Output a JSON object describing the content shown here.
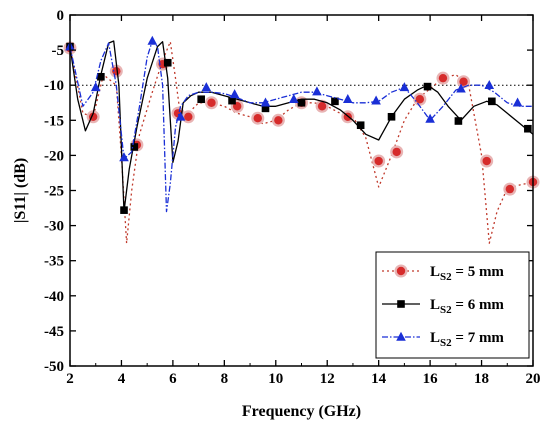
{
  "chart_data": {
    "type": "line",
    "xlabel": "Frequency (GHz)",
    "ylabel": "|S11| (dB)",
    "xlim": [
      2,
      20
    ],
    "ylim": [
      -50,
      0
    ],
    "xticks": [
      2,
      4,
      6,
      8,
      10,
      12,
      14,
      16,
      18,
      20
    ],
    "yticks": [
      0,
      -5,
      -10,
      -15,
      -20,
      -25,
      -30,
      -35,
      -40,
      -45,
      -50
    ],
    "reference_line": {
      "y": -10,
      "style": "dotted"
    },
    "legend_position": "bottom-right",
    "series": [
      {
        "name": "LS2 = 5 mm",
        "label_main": "L",
        "label_sub": "S2",
        "label_tail": " = 5 mm",
        "color": "#c0392b",
        "marker_fill": "#d62b2b",
        "marker_halo": "#e8b4b4",
        "marker": "circle",
        "dash": "2,3",
        "x": [
          2.0,
          2.5,
          2.9,
          3.3,
          3.8,
          4.0,
          4.2,
          4.4,
          4.7,
          5.2,
          5.6,
          5.9,
          6.1,
          6.3,
          6.6,
          7.0,
          7.5,
          8.0,
          8.5,
          9.0,
          9.5,
          10.0,
          10.5,
          11.0,
          11.5,
          12.0,
          12.5,
          13.0,
          13.5,
          14.0,
          14.5,
          15.0,
          15.5,
          16.0,
          16.5,
          17.0,
          17.5,
          18.0,
          18.3,
          18.6,
          19.0,
          19.5,
          20.0
        ],
        "y": [
          -4.5,
          -14.0,
          -14.5,
          -8.5,
          -10.0,
          -20.0,
          -32.5,
          -25.0,
          -17.0,
          -11.0,
          -6.5,
          -3.8,
          -9.0,
          -14.5,
          -14.0,
          -12.5,
          -12.5,
          -13.0,
          -14.0,
          -14.5,
          -15.5,
          -15.0,
          -13.5,
          -12.5,
          -12.5,
          -13.0,
          -14.0,
          -14.5,
          -17.5,
          -24.5,
          -20.0,
          -15.0,
          -12.0,
          -10.5,
          -9.0,
          -8.5,
          -10.0,
          -20.0,
          -32.5,
          -28.0,
          -24.7,
          -24.2,
          -23.8
        ],
        "marker_x": [
          2.0,
          2.9,
          3.8,
          4.6,
          5.6,
          6.2,
          6.6,
          7.5,
          8.5,
          9.3,
          10.1,
          11.0,
          11.8,
          12.8,
          14.0,
          14.7,
          15.6,
          16.5,
          17.3,
          18.2,
          19.1,
          20.0
        ],
        "marker_y": [
          -4.7,
          -14.5,
          -8.0,
          -18.5,
          -7.0,
          -14.0,
          -14.5,
          -12.5,
          -13.0,
          -14.7,
          -15.0,
          -12.5,
          -13.0,
          -14.5,
          -20.8,
          -19.5,
          -12.0,
          -9.0,
          -9.5,
          -20.8,
          -24.8,
          -23.8
        ]
      },
      {
        "name": "LS2 = 6 mm",
        "label_main": "L",
        "label_sub": "S2",
        "label_tail": " = 6 mm",
        "color": "#000000",
        "marker_fill": "#000000",
        "marker": "square",
        "dash": "",
        "x": [
          2.0,
          2.3,
          2.6,
          2.9,
          3.2,
          3.5,
          3.7,
          3.9,
          4.1,
          4.3,
          4.6,
          5.0,
          5.4,
          5.6,
          5.8,
          6.0,
          6.2,
          6.4,
          6.7,
          7.0,
          7.5,
          8.0,
          8.5,
          9.0,
          9.5,
          10.0,
          10.5,
          11.0,
          11.5,
          12.0,
          12.5,
          13.0,
          13.5,
          14.0,
          14.5,
          15.0,
          15.5,
          15.9,
          16.3,
          16.7,
          17.2,
          17.7,
          18.2,
          18.6,
          19.0,
          19.5,
          20.0
        ],
        "y": [
          -4.5,
          -12.0,
          -16.5,
          -14.0,
          -8.5,
          -4.0,
          -3.7,
          -10.0,
          -28.0,
          -22.0,
          -16.0,
          -9.0,
          -4.5,
          -3.8,
          -9.0,
          -21.0,
          -18.0,
          -12.5,
          -11.5,
          -11.0,
          -11.0,
          -11.5,
          -12.0,
          -12.5,
          -13.0,
          -13.0,
          -12.5,
          -12.0,
          -12.0,
          -12.5,
          -13.5,
          -15.0,
          -17.0,
          -17.8,
          -14.5,
          -12.0,
          -10.7,
          -10.0,
          -11.0,
          -13.0,
          -15.0,
          -13.0,
          -12.3,
          -12.8,
          -14.0,
          -15.5,
          -17.0
        ],
        "marker_x": [
          2.0,
          3.2,
          4.1,
          4.5,
          5.8,
          7.1,
          8.3,
          9.6,
          11.0,
          12.3,
          13.3,
          14.5,
          15.9,
          17.1,
          18.4,
          19.8
        ],
        "marker_y": [
          -4.5,
          -8.8,
          -27.8,
          -18.8,
          -6.8,
          -12.0,
          -12.2,
          -13.3,
          -12.5,
          -12.3,
          -15.7,
          -14.5,
          -10.2,
          -15.1,
          -12.3,
          -16.2
        ]
      },
      {
        "name": "LS2 = 7 mm",
        "label_main": "L",
        "label_sub": "S2",
        "label_tail": " = 7 mm",
        "color": "#1a2fd6",
        "marker_fill": "#1a2fd6",
        "marker": "triangle",
        "dash": "6,2,1.5,2",
        "x": [
          2.0,
          2.5,
          2.9,
          3.2,
          3.5,
          3.8,
          4.1,
          4.4,
          4.7,
          5.0,
          5.2,
          5.4,
          5.6,
          5.75,
          5.9,
          6.1,
          6.3,
          6.6,
          7.0,
          7.5,
          8.0,
          8.5,
          9.0,
          9.5,
          10.0,
          10.5,
          11.0,
          11.5,
          12.0,
          12.5,
          13.0,
          13.5,
          14.0,
          14.5,
          15.0,
          15.5,
          16.0,
          16.5,
          17.0,
          17.5,
          18.0,
          18.5,
          19.0,
          19.5,
          20.0
        ],
        "y": [
          -4.5,
          -13.0,
          -11.0,
          -6.5,
          -4.0,
          -10.0,
          -20.5,
          -19.5,
          -13.0,
          -6.0,
          -3.7,
          -4.5,
          -10.0,
          -28.0,
          -24.0,
          -16.0,
          -13.0,
          -11.5,
          -11.0,
          -11.0,
          -11.2,
          -11.8,
          -12.5,
          -12.5,
          -12.0,
          -11.5,
          -11.0,
          -11.0,
          -11.5,
          -12.0,
          -12.5,
          -12.5,
          -12.3,
          -11.0,
          -10.3,
          -12.5,
          -15.0,
          -13.0,
          -10.7,
          -10.0,
          -10.0,
          -11.0,
          -12.5,
          -13.0,
          -13.0
        ],
        "marker_x": [
          2.0,
          3.0,
          4.1,
          5.2,
          6.3,
          7.3,
          8.4,
          9.6,
          10.7,
          11.6,
          12.8,
          13.9,
          15.0,
          16.0,
          17.2,
          18.3,
          19.4
        ],
        "marker_y": [
          -4.5,
          -10.3,
          -20.3,
          -3.7,
          -14.5,
          -10.3,
          -11.3,
          -12.5,
          -12.0,
          -10.9,
          -12.0,
          -12.2,
          -10.3,
          -14.8,
          -10.5,
          -10.0,
          -12.5
        ]
      }
    ]
  }
}
